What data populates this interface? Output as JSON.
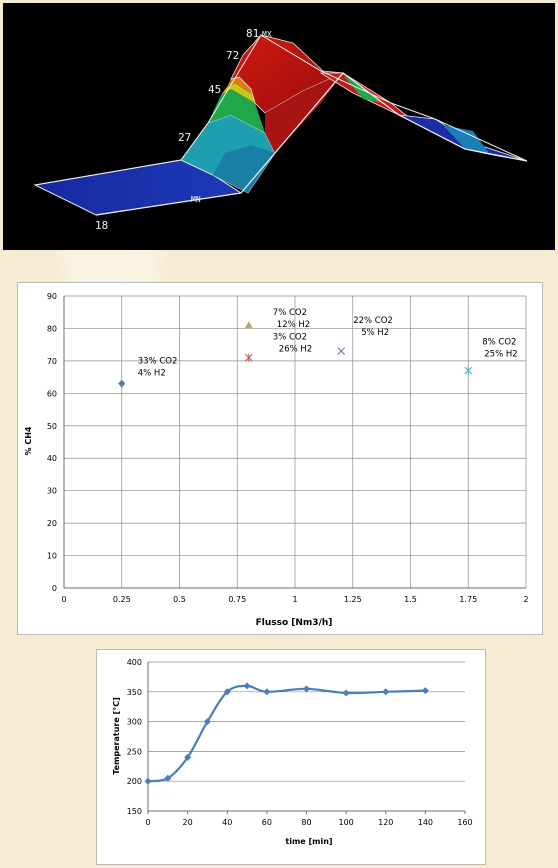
{
  "chart_data": [
    {
      "type": "surface",
      "contour_labels": [
        {
          "text": "81",
          "value": 81
        },
        {
          "text": "72",
          "value": 72
        },
        {
          "text": "45",
          "value": 45
        },
        {
          "text": "27",
          "value": 27
        },
        {
          "text": "18",
          "value": 18
        }
      ],
      "markers": [
        {
          "text": "MX",
          "meaning": "max"
        },
        {
          "text": "MN",
          "meaning": "min"
        }
      ],
      "colors": {
        "background": "#000000",
        "high": "#b01010",
        "mid_high": "#1fa83b",
        "mid": "#1ab0b6",
        "low": "#1a2da8",
        "lowest": "#101c90"
      }
    },
    {
      "type": "scatter",
      "xlabel": "Flusso [Nm3/h]",
      "ylabel": "% CH4",
      "xlim": [
        0,
        2
      ],
      "ylim": [
        0,
        90
      ],
      "xticks": [
        "0",
        "0.25",
        "0.5",
        "0.75",
        "1",
        "1.25",
        "1.5",
        "1.75",
        "2"
      ],
      "yticks": [
        "0",
        "10",
        "20",
        "30",
        "40",
        "50",
        "60",
        "70",
        "80",
        "90"
      ],
      "grid": true,
      "points": [
        {
          "x": 0.25,
          "y": 63,
          "marker": "diamond",
          "color": "#4a7ebb",
          "label1": "33% CO2",
          "label2": "4% H2"
        },
        {
          "x": 0.8,
          "y": 81,
          "marker": "triangle",
          "color": "#9bbb59",
          "label1": "7% CO2",
          "label2": "12% H2"
        },
        {
          "x": 0.8,
          "y": 71,
          "marker": "star",
          "color": "#c0504d",
          "label1": "3% CO2",
          "label2": "26% H2"
        },
        {
          "x": 1.2,
          "y": 73,
          "marker": "x",
          "color": "#8064a2",
          "label1": "22% CO2",
          "label2": "5% H2"
        },
        {
          "x": 1.75,
          "y": 67,
          "marker": "star",
          "color": "#4bacc6",
          "label1": "8% CO2",
          "label2": "25% H2"
        }
      ]
    },
    {
      "type": "line",
      "xlabel": "time [min]",
      "ylabel": "Temperature [°C]",
      "xlim": [
        0,
        160
      ],
      "ylim": [
        150,
        400
      ],
      "xticks": [
        "0",
        "20",
        "40",
        "60",
        "80",
        "100",
        "120",
        "140",
        "160"
      ],
      "yticks": [
        "150",
        "200",
        "250",
        "300",
        "350",
        "400"
      ],
      "grid": true,
      "series": [
        {
          "color": "#4a7ebb",
          "x": [
            0,
            10,
            20,
            30,
            40,
            50,
            60,
            80,
            100,
            120,
            140
          ],
          "y": [
            200,
            205,
            240,
            300,
            350,
            360,
            350,
            355,
            348,
            350,
            352
          ]
        }
      ]
    }
  ]
}
